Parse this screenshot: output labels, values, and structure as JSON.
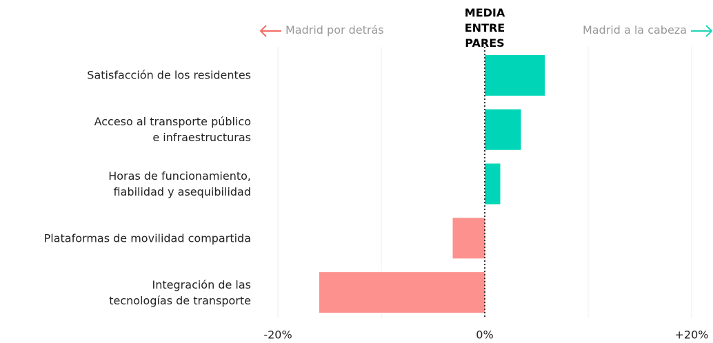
{
  "chart_data": {
    "type": "bar",
    "orientation": "horizontal",
    "title": "MEDIA ENTRE PARES",
    "annotations": {
      "left": "Madrid por detrás",
      "right": "Madrid a la cabeza"
    },
    "categories": [
      "Satisfacción de los residentes",
      "Acceso al transporte público\ne infraestructuras",
      "Horas de funcionamiento,\nfiabilidad y asequibilidad",
      "Plataformas de movilidad compartida",
      "Integración de las\ntecnologías de transporte"
    ],
    "values": [
      5.8,
      3.5,
      1.5,
      -3.1,
      -16
    ],
    "positive_color": "#00d6b7",
    "negative_color": "#fc918e",
    "left_color": "#f26b63",
    "right_color": "#1fd6b6",
    "xlim": [
      -20,
      20
    ],
    "xticks": [
      {
        "value": -20,
        "label": "-20%"
      },
      {
        "value": 0,
        "label": "0%"
      },
      {
        "value": 20,
        "label": "+20%"
      }
    ],
    "grid_lines": [
      -20,
      -10,
      0,
      10,
      20
    ],
    "grid": true
  }
}
